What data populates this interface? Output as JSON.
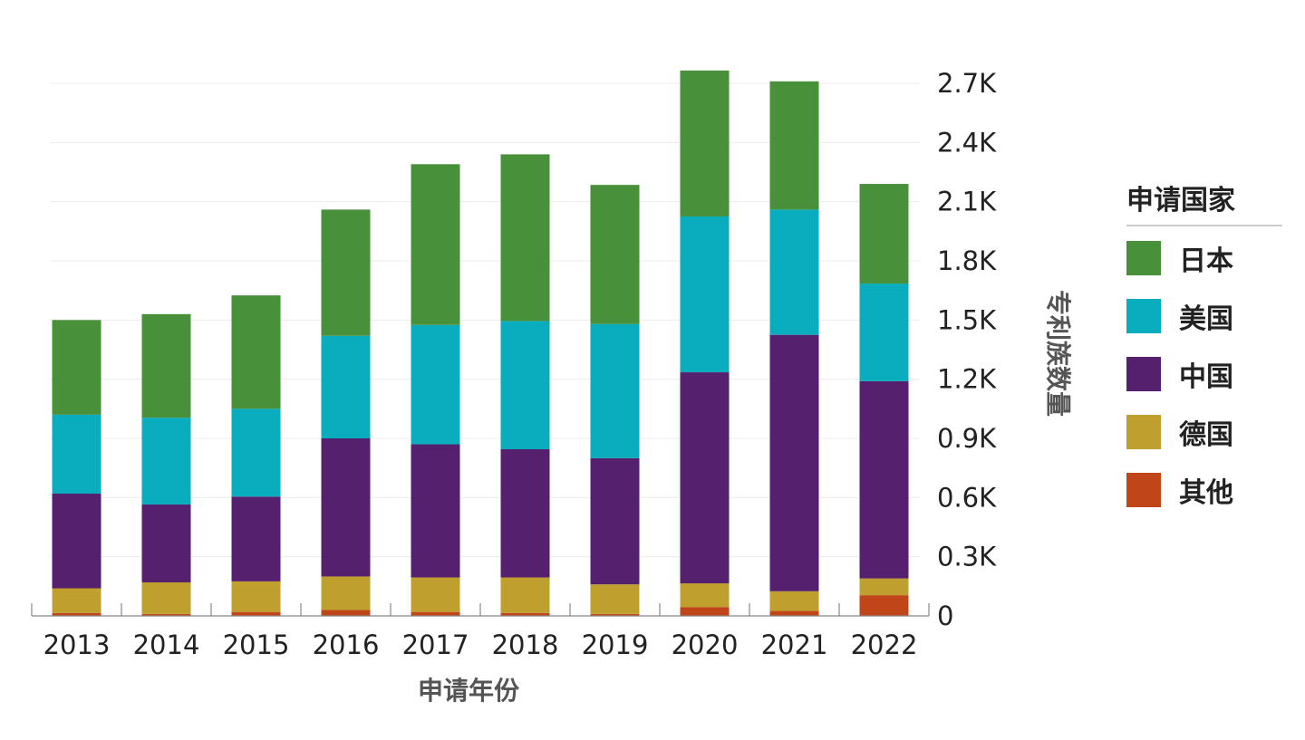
{
  "chart_data": {
    "type": "bar",
    "stacked": true,
    "categories": [
      "2013",
      "2014",
      "2015",
      "2016",
      "2017",
      "2018",
      "2019",
      "2020",
      "2021",
      "2022"
    ],
    "series": [
      {
        "name": "其他",
        "color": "#c0461a",
        "values": [
          15,
          10,
          20,
          30,
          20,
          15,
          10,
          45,
          25,
          105
        ]
      },
      {
        "name": "德国",
        "color": "#bfa02e",
        "values": [
          125,
          160,
          155,
          170,
          175,
          180,
          150,
          120,
          100,
          85
        ]
      },
      {
        "name": "中国",
        "color": "#55206e",
        "values": [
          480,
          395,
          430,
          700,
          675,
          650,
          640,
          1070,
          1300,
          1000
        ]
      },
      {
        "name": "美国",
        "color": "#0aadbd",
        "values": [
          400,
          440,
          445,
          520,
          605,
          650,
          680,
          790,
          635,
          495
        ]
      },
      {
        "name": "日本",
        "color": "#48913a",
        "values": [
          480,
          525,
          575,
          640,
          815,
          845,
          705,
          740,
          650,
          505
        ]
      }
    ],
    "y_ticks": [
      "0",
      "0.3K",
      "0.6K",
      "0.9K",
      "1.2K",
      "1.5K",
      "1.8K",
      "2.1K",
      "2.4K",
      "2.7K"
    ],
    "ylim": [
      0,
      2700
    ],
    "xlabel": "申请年份",
    "ylabel": "专利族数量",
    "y_axis_position": "right",
    "grid": true,
    "legend_title": "申请国家",
    "legend_placement": "right",
    "legend": [
      {
        "label": "日本",
        "color": "#48913a"
      },
      {
        "label": "美国",
        "color": "#0aadbd"
      },
      {
        "label": "中国",
        "color": "#55206e"
      },
      {
        "label": "德国",
        "color": "#bfa02e"
      },
      {
        "label": "其他",
        "color": "#c0461a"
      }
    ]
  }
}
